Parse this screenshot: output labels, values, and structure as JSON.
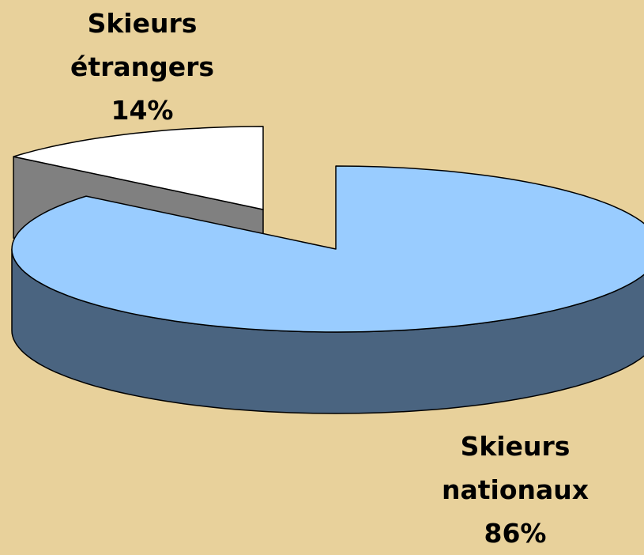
{
  "chart_data": {
    "type": "pie",
    "categories": [
      "Skieurs étrangers",
      "Skieurs nationaux"
    ],
    "values": [
      14,
      86
    ],
    "value_labels": [
      "14%",
      "86%"
    ],
    "colors": [
      "#ffffff",
      "#99ccff"
    ],
    "side_colors": [
      "#808080",
      "#4a6480"
    ]
  }
}
